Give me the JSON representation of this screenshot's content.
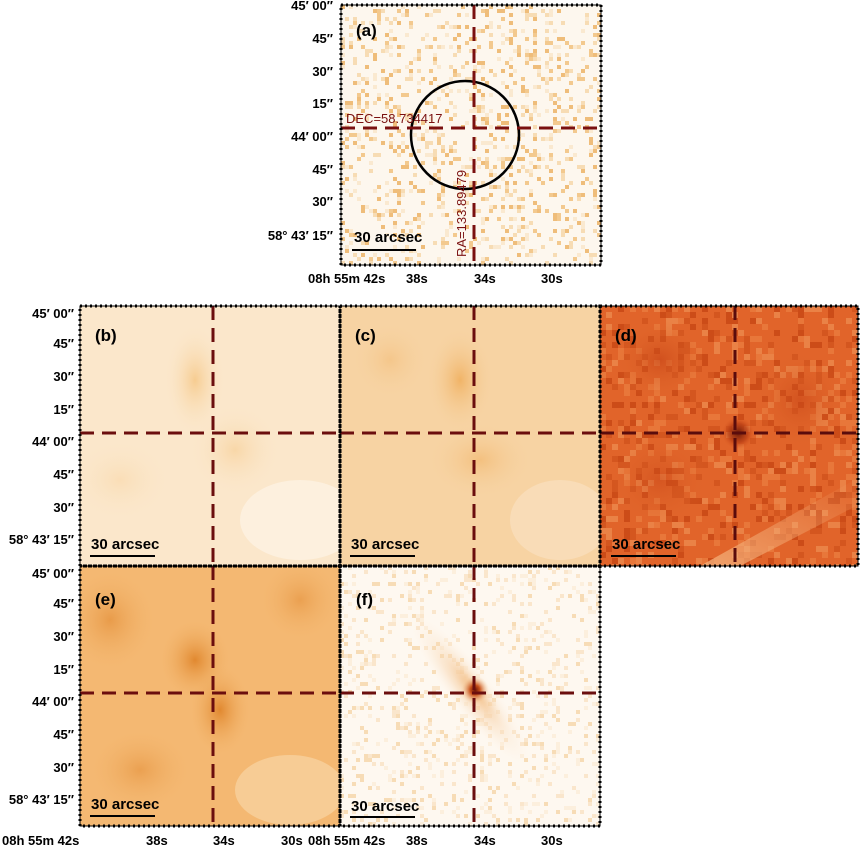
{
  "colors": {
    "crosshair": "#7a1010",
    "frame": "#000000",
    "text": "#000000"
  },
  "panel_a": {
    "label": "(a)",
    "dec_label": "DEC=58.734417",
    "ra_label": "RA=133.89479",
    "scalebar": "30 arcsec",
    "y_ticks": [
      "45′ 00″",
      "45″",
      "30″",
      "15″",
      "44′ 00″",
      "45″",
      "30″",
      "58° 43′ 15″"
    ],
    "x_ticks": [
      "08h 55m 42s",
      "38s",
      "34s",
      "30s"
    ]
  },
  "panels": [
    {
      "id": "b",
      "label": "(b)",
      "scalebar": "30 arcsec",
      "style": "pale"
    },
    {
      "id": "c",
      "label": "(c)",
      "scalebar": "30 arcsec",
      "style": "light"
    },
    {
      "id": "d",
      "label": "(d)",
      "scalebar": "30 arcsec",
      "style": "red"
    },
    {
      "id": "e",
      "label": "(e)",
      "scalebar": "30 arcsec",
      "style": "medium"
    },
    {
      "id": "f",
      "label": "(f)",
      "scalebar": "30 arcsec",
      "style": "point"
    }
  ],
  "row_b_y_ticks": [
    "45′ 00″",
    "45″",
    "30″",
    "15″",
    "44′ 00″",
    "45″",
    "30″",
    "58° 43′ 15″"
  ],
  "row_e_y_ticks": [
    "45′ 00″",
    "45″",
    "30″",
    "15″",
    "44′ 00″",
    "45″",
    "30″",
    "58° 43′ 15″"
  ],
  "bottom_x_ticks_e": [
    "08h 55m 42s",
    "38s",
    "34s",
    "30s"
  ],
  "bottom_x_ticks_f": [
    "08h 55m 42s",
    "38s",
    "34s",
    "30s"
  ]
}
